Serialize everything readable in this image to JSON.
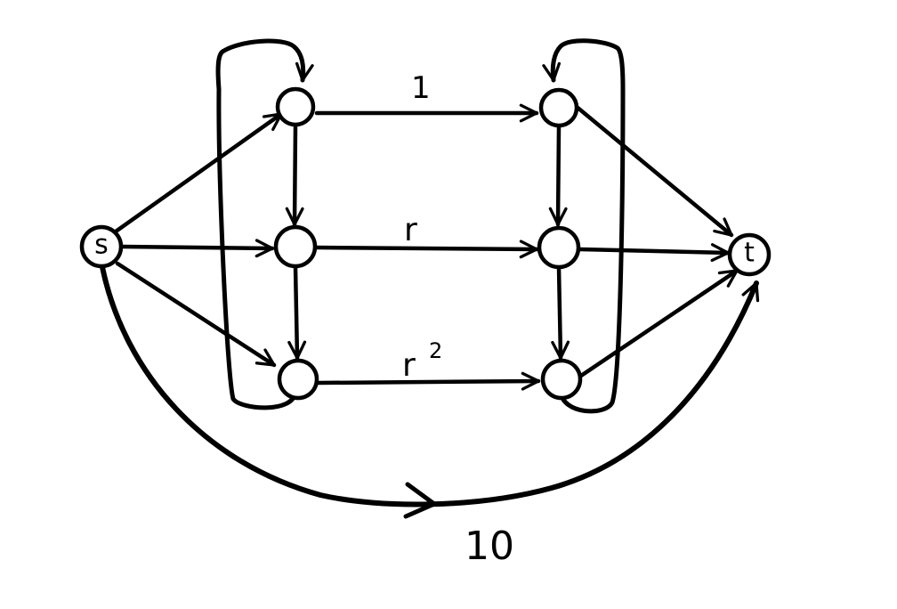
{
  "diagram": {
    "nodes": {
      "source_label": "s",
      "sink_label": "t"
    },
    "edge_labels": {
      "top": "1",
      "middle": "r",
      "bottom": "r",
      "bottom_superscript": "2",
      "bypass": "10"
    }
  }
}
